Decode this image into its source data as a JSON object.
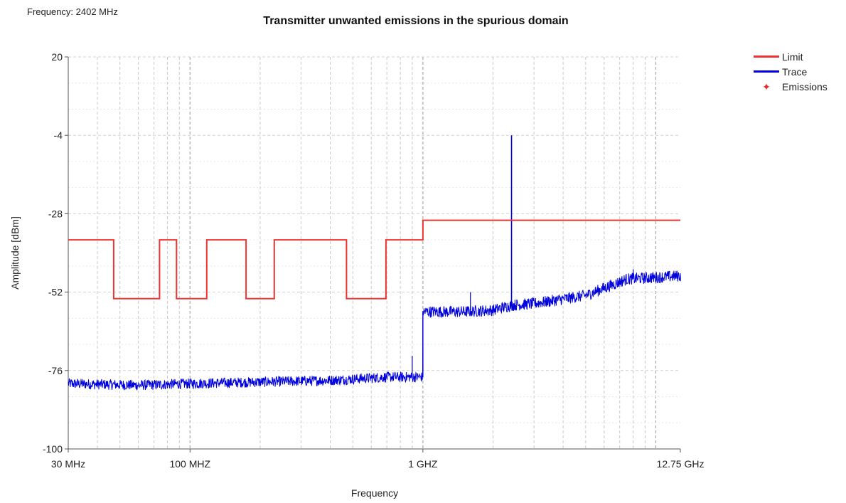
{
  "header": {
    "frequency_label": "Frequency: 2402 MHz"
  },
  "chart_data": {
    "type": "line",
    "title": "Transmitter unwanted emissions in the spurious domain",
    "xlabel": "Frequency",
    "ylabel": "Amplitude [dBm]",
    "x_scale": "log",
    "x_unit": "MHz",
    "xlim": [
      30,
      12750
    ],
    "ylim": [
      -100,
      20
    ],
    "x_ticks": [
      {
        "value": 30,
        "label": "30 MHz"
      },
      {
        "value": 100,
        "label": "100 MHZ"
      },
      {
        "value": 1000,
        "label": "1 GHZ"
      },
      {
        "value": 12750,
        "label": "12.75 GHz"
      }
    ],
    "y_ticks": [
      20,
      -4,
      -28,
      -52,
      -76,
      -100
    ],
    "grid": true,
    "legend_position": "top-right",
    "series": [
      {
        "name": "Limit",
        "color": "#ee3333",
        "x": [
          30,
          47,
          47,
          74,
          74,
          87.5,
          87.5,
          118,
          118,
          174,
          174,
          230,
          230,
          470,
          470,
          694,
          694,
          1000,
          1000,
          12750
        ],
        "y": [
          -36,
          -36,
          -54,
          -54,
          -36,
          -36,
          -54,
          -54,
          -36,
          -36,
          -54,
          -54,
          -36,
          -36,
          -54,
          -54,
          -36,
          -36,
          -30,
          -30
        ]
      },
      {
        "name": "Trace",
        "color": "#0000dd",
        "x": [
          30,
          60,
          100,
          200,
          400,
          700,
          900,
          1000,
          1000,
          1500,
          2000,
          2402,
          3000,
          5000,
          7500,
          10000,
          12750
        ],
        "y": [
          -80,
          -80.5,
          -80,
          -79.5,
          -79,
          -78,
          -78,
          -78,
          -58,
          -58,
          -57.5,
          -56,
          -55.5,
          -53,
          -48,
          -47.5,
          -47
        ],
        "peak": {
          "x": 2402,
          "y": -4
        }
      },
      {
        "name": "Emissions",
        "color": "#ee2222",
        "marker": "✦",
        "x": [],
        "y": []
      }
    ]
  }
}
